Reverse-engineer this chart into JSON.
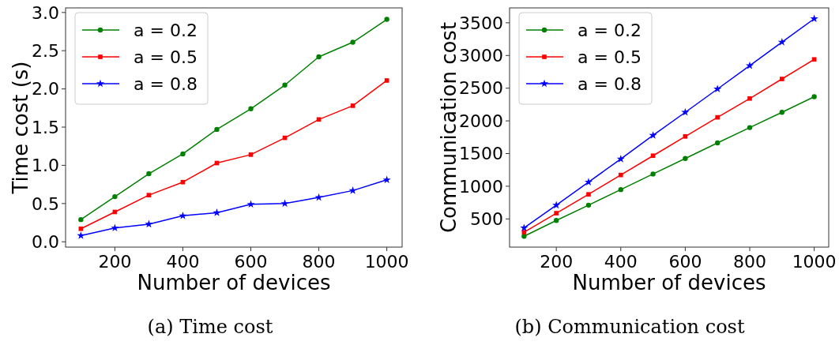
{
  "chart_data": [
    {
      "type": "line",
      "title": "(a) Time cost",
      "xlabel": "Number of devices",
      "ylabel": "Time cost (s)",
      "x": [
        100,
        200,
        300,
        400,
        500,
        600,
        700,
        800,
        900,
        1000
      ],
      "xlim": [
        55,
        1045
      ],
      "xticks": [
        200,
        400,
        600,
        800,
        1000
      ],
      "ylim": [
        -0.07,
        3.06
      ],
      "yticks": [
        {
          "value": 0,
          "label": "0.0"
        },
        0.5,
        {
          "value": 1,
          "label": "1.0"
        },
        1.5,
        {
          "value": 2,
          "label": "2.0"
        },
        2.5,
        {
          "value": 3,
          "label": "3.0"
        }
      ],
      "legend": "top left",
      "series": [
        {
          "name": "a = 0.2",
          "color": "#008000",
          "marker": "circle",
          "values": [
            0.29,
            0.59,
            0.89,
            1.15,
            1.47,
            1.74,
            2.05,
            2.42,
            2.61,
            2.91
          ]
        },
        {
          "name": "a = 0.5",
          "color": "#ff0000",
          "marker": "square",
          "values": [
            0.17,
            0.39,
            0.61,
            0.78,
            1.03,
            1.14,
            1.36,
            1.6,
            1.78,
            2.11
          ]
        },
        {
          "name": "a = 0.8",
          "color": "#0000ff",
          "marker": "star",
          "values": [
            0.08,
            0.18,
            0.23,
            0.34,
            0.38,
            0.49,
            0.5,
            0.58,
            0.67,
            0.81
          ]
        }
      ]
    },
    {
      "type": "line",
      "title": "(b) Communication cost",
      "xlabel": "Number of devices",
      "ylabel": "Communication cost",
      "x": [
        100,
        200,
        300,
        400,
        500,
        600,
        700,
        800,
        900,
        1000
      ],
      "xlim": [
        55,
        1045
      ],
      "xticks": [
        200,
        400,
        600,
        800,
        1000
      ],
      "ylim": [
        69,
        3728
      ],
      "yticks": [
        500,
        1000,
        1500,
        2000,
        2500,
        3000,
        3500
      ],
      "legend": "top left",
      "series": [
        {
          "name": "a = 0.2",
          "color": "#008000",
          "marker": "circle",
          "values": [
            235,
            477,
            711,
            949,
            1187,
            1425,
            1663,
            1897,
            2131,
            2369
          ]
        },
        {
          "name": "a = 0.5",
          "color": "#ff0000",
          "marker": "square",
          "values": [
            297,
            588,
            876,
            1172,
            1467,
            1762,
            2054,
            2342,
            2641,
            2940
          ]
        },
        {
          "name": "a = 0.8",
          "color": "#0000ff",
          "marker": "star",
          "values": [
            362,
            711,
            1064,
            1417,
            1778,
            2131,
            2487,
            2845,
            3205,
            3562
          ]
        }
      ]
    }
  ]
}
